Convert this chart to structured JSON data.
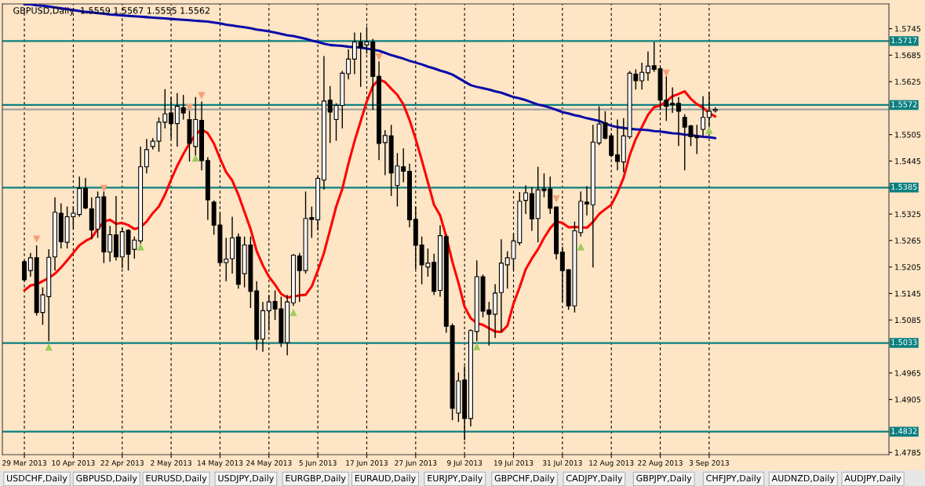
{
  "chart_data": {
    "type": "candlestick",
    "title": "GBPUSD,Daily  1.5559 1.5567 1.5555 1.5562",
    "categories": [
      "29 Mar 2013",
      null,
      null,
      null,
      null,
      null,
      null,
      null,
      "10 Apr 2013",
      null,
      null,
      null,
      null,
      null,
      null,
      null,
      "22 Apr 2013",
      null,
      null,
      null,
      null,
      null,
      null,
      null,
      "2 May 2013",
      null,
      null,
      null,
      null,
      null,
      null,
      null,
      "14 May 2013",
      null,
      null,
      null,
      null,
      null,
      null,
      null,
      "24 May 2013",
      null,
      null,
      null,
      null,
      null,
      null,
      null,
      "5 Jun 2013",
      null,
      null,
      null,
      null,
      null,
      null,
      null,
      "17 Jun 2013",
      null,
      null,
      null,
      null,
      null,
      null,
      null,
      "27 Jun 2013",
      null,
      null,
      null,
      null,
      null,
      null,
      null,
      "9 Jul 2013",
      null,
      null,
      null,
      null,
      null,
      null,
      null,
      "19 Jul 2013",
      null,
      null,
      null,
      null,
      null,
      null,
      null,
      "31 Jul 2013",
      null,
      null,
      null,
      null,
      null,
      null,
      null,
      "12 Aug 2013",
      null,
      null,
      null,
      null,
      null,
      null,
      null,
      "22 Aug 2013",
      null,
      null,
      null,
      null,
      null,
      null,
      null,
      "3 Sep 2013",
      null
    ],
    "ohlc": [
      [
        1.5217,
        1.522,
        1.5173,
        1.5176
      ],
      [
        1.5197,
        1.5237,
        1.5183,
        1.5226
      ],
      [
        1.5226,
        1.5254,
        1.5095,
        1.5102
      ],
      [
        1.5102,
        1.5159,
        1.5074,
        1.5142
      ],
      [
        1.5138,
        1.5245,
        1.5037,
        1.5227
      ],
      [
        1.5228,
        1.5363,
        1.5197,
        1.5329
      ],
      [
        1.5327,
        1.5349,
        1.5247,
        1.5262
      ],
      [
        1.5261,
        1.5342,
        1.5247,
        1.5319
      ],
      [
        1.5319,
        1.5342,
        1.5291,
        1.5327
      ],
      [
        1.5324,
        1.541,
        1.5319,
        1.5383
      ],
      [
        1.5383,
        1.5407,
        1.5336,
        1.5339
      ],
      [
        1.5337,
        1.5363,
        1.5268,
        1.5289
      ],
      [
        1.5291,
        1.5376,
        1.5271,
        1.5363
      ],
      [
        1.5364,
        1.5376,
        1.5214,
        1.5239
      ],
      [
        1.5239,
        1.5298,
        1.5217,
        1.5278
      ],
      [
        1.5278,
        1.5366,
        1.522,
        1.5228
      ],
      [
        1.5228,
        1.5295,
        1.5202,
        1.5285
      ],
      [
        1.5288,
        1.5291,
        1.5197,
        1.5234
      ],
      [
        1.5245,
        1.5274,
        1.5224,
        1.5266
      ],
      [
        1.5264,
        1.5478,
        1.5258,
        1.5432
      ],
      [
        1.5432,
        1.5495,
        1.5417,
        1.5471
      ],
      [
        1.5478,
        1.5497,
        1.5471,
        1.549
      ],
      [
        1.549,
        1.5544,
        1.5466,
        1.5533
      ],
      [
        1.5533,
        1.5608,
        1.5519,
        1.5552
      ],
      [
        1.5554,
        1.559,
        1.5495,
        1.553
      ],
      [
        1.553,
        1.5599,
        1.5478,
        1.5569
      ],
      [
        1.5566,
        1.5595,
        1.5539,
        1.5554
      ],
      [
        1.5539,
        1.5559,
        1.5444,
        1.5485
      ],
      [
        1.5478,
        1.559,
        1.5458,
        1.5539
      ],
      [
        1.5537,
        1.558,
        1.5424,
        1.5446
      ],
      [
        1.5446,
        1.5454,
        1.5312,
        1.5357
      ],
      [
        1.5352,
        1.5356,
        1.5278,
        1.53
      ],
      [
        1.53,
        1.5329,
        1.5207,
        1.5215
      ],
      [
        1.5215,
        1.5271,
        1.5173,
        1.5223
      ],
      [
        1.5224,
        1.5319,
        1.519,
        1.5271
      ],
      [
        1.5273,
        1.5281,
        1.5156,
        1.5166
      ],
      [
        1.519,
        1.5274,
        1.5159,
        1.5255
      ],
      [
        1.5255,
        1.5274,
        1.5112,
        1.515
      ],
      [
        1.5151,
        1.5173,
        1.5017,
        1.5041
      ],
      [
        1.5042,
        1.5126,
        1.5013,
        1.5106
      ],
      [
        1.5106,
        1.5142,
        1.5061,
        1.5126
      ],
      [
        1.5127,
        1.5152,
        1.5085,
        1.511
      ],
      [
        1.511,
        1.5138,
        1.5024,
        1.5034
      ],
      [
        1.5034,
        1.5142,
        1.5005,
        1.5126
      ],
      [
        1.5124,
        1.5234,
        1.5117,
        1.5232
      ],
      [
        1.523,
        1.5237,
        1.5126,
        1.5197
      ],
      [
        1.5197,
        1.5376,
        1.519,
        1.5315
      ],
      [
        1.5317,
        1.5342,
        1.5271,
        1.5313
      ],
      [
        1.5312,
        1.541,
        1.5288,
        1.5406
      ],
      [
        1.5402,
        1.5683,
        1.538,
        1.5581
      ],
      [
        1.5583,
        1.5615,
        1.5486,
        1.5556
      ],
      [
        1.5539,
        1.5576,
        1.5491,
        1.5571
      ],
      [
        1.5571,
        1.5649,
        1.5519,
        1.5644
      ],
      [
        1.5643,
        1.5698,
        1.563,
        1.5676
      ],
      [
        1.5676,
        1.5736,
        1.5642,
        1.5715
      ],
      [
        1.5715,
        1.5736,
        1.5613,
        1.5703
      ],
      [
        1.5708,
        1.5749,
        1.5688,
        1.5715
      ],
      [
        1.5715,
        1.5722,
        1.5561,
        1.5637
      ],
      [
        1.5637,
        1.5671,
        1.5447,
        1.5485
      ],
      [
        1.5487,
        1.5515,
        1.5413,
        1.5503
      ],
      [
        1.5502,
        1.5527,
        1.5366,
        1.5418
      ],
      [
        1.539,
        1.5463,
        1.5342,
        1.5434
      ],
      [
        1.5432,
        1.5474,
        1.5397,
        1.5422
      ],
      [
        1.5422,
        1.5439,
        1.5295,
        1.5312
      ],
      [
        1.5313,
        1.5342,
        1.52,
        1.5254
      ],
      [
        1.5255,
        1.5274,
        1.5166,
        1.521
      ],
      [
        1.5205,
        1.5247,
        1.5183,
        1.5214
      ],
      [
        1.5216,
        1.5235,
        1.5142,
        1.515
      ],
      [
        1.5152,
        1.53,
        1.5138,
        1.5276
      ],
      [
        1.5274,
        1.5278,
        1.5056,
        1.5071
      ],
      [
        1.5072,
        1.5077,
        1.4858,
        1.4885
      ],
      [
        1.4874,
        1.4966,
        1.4854,
        1.4947
      ],
      [
        1.4949,
        1.498,
        1.4813,
        1.4862
      ],
      [
        1.4862,
        1.5064,
        1.4844,
        1.5061
      ],
      [
        1.5059,
        1.522,
        1.5037,
        1.5183
      ],
      [
        1.5183,
        1.5188,
        1.5091,
        1.5105
      ],
      [
        1.5108,
        1.5126,
        1.5027,
        1.5098
      ],
      [
        1.5098,
        1.5166,
        1.5044,
        1.5146
      ],
      [
        1.5147,
        1.5268,
        1.5058,
        1.5214
      ],
      [
        1.521,
        1.5241,
        1.5156,
        1.5226
      ],
      [
        1.5224,
        1.5281,
        1.5197,
        1.5264
      ],
      [
        1.526,
        1.5375,
        1.5254,
        1.5354
      ],
      [
        1.5356,
        1.539,
        1.5325,
        1.5373
      ],
      [
        1.5371,
        1.5386,
        1.5287,
        1.5314
      ],
      [
        1.5315,
        1.5432,
        1.5261,
        1.538
      ],
      [
        1.5382,
        1.5417,
        1.5363,
        1.5378
      ],
      [
        1.5382,
        1.541,
        1.5325,
        1.5338
      ],
      [
        1.5341,
        1.5342,
        1.5222,
        1.5235
      ],
      [
        1.5239,
        1.5251,
        1.5126,
        1.5197
      ],
      [
        1.5199,
        1.52,
        1.5108,
        1.5117
      ],
      [
        1.5117,
        1.5308,
        1.5102,
        1.5287
      ],
      [
        1.5283,
        1.5376,
        1.5274,
        1.5354
      ],
      [
        1.5352,
        1.5388,
        1.5322,
        1.5348
      ],
      [
        1.5346,
        1.5527,
        1.5204,
        1.5488
      ],
      [
        1.5486,
        1.5569,
        1.5481,
        1.5529
      ],
      [
        1.5532,
        1.5558,
        1.5494,
        1.5497
      ],
      [
        1.5502,
        1.5508,
        1.5454,
        1.5458
      ],
      [
        1.5459,
        1.5539,
        1.5424,
        1.5444
      ],
      [
        1.5443,
        1.5542,
        1.542,
        1.5502
      ],
      [
        1.55,
        1.5649,
        1.5495,
        1.5644
      ],
      [
        1.5642,
        1.5653,
        1.5607,
        1.5627
      ],
      [
        1.5627,
        1.5668,
        1.5607,
        1.5646
      ],
      [
        1.5645,
        1.5693,
        1.5627,
        1.566
      ],
      [
        1.5661,
        1.5715,
        1.5647,
        1.5653
      ],
      [
        1.5654,
        1.5658,
        1.5561,
        1.5583
      ],
      [
        1.5583,
        1.5637,
        1.5536,
        1.5569
      ],
      [
        1.5576,
        1.5612,
        1.5554,
        1.5573
      ],
      [
        1.5576,
        1.559,
        1.5479,
        1.5558
      ],
      [
        1.5544,
        1.5551,
        1.5424,
        1.5522
      ],
      [
        1.5525,
        1.5527,
        1.5479,
        1.55
      ],
      [
        1.5502,
        1.5527,
        1.5461,
        1.5498
      ],
      [
        1.5517,
        1.5592,
        1.5502,
        1.5544
      ],
      [
        1.5544,
        1.5601,
        1.5522,
        1.5558
      ],
      [
        1.5559,
        1.5567,
        1.5555,
        1.5562
      ]
    ],
    "series": [
      {
        "type": "line",
        "color": "#ff0000",
        "values": [
          1.5152,
          1.5163,
          1.5166,
          1.5173,
          1.518,
          1.519,
          1.5204,
          1.522,
          1.5237,
          1.5254,
          1.5264,
          1.5271,
          1.5291,
          1.5308,
          1.5312,
          1.5303,
          1.5305,
          1.53,
          1.5291,
          1.5295,
          1.5308,
          1.5327,
          1.5342,
          1.5369,
          1.5403,
          1.5434,
          1.5461,
          1.5485,
          1.5505,
          1.5517,
          1.5508,
          1.5485,
          1.5451,
          1.542,
          1.5401,
          1.5369,
          1.533,
          1.5291,
          1.5241,
          1.5209,
          1.5183,
          1.5165,
          1.5144,
          1.5136,
          1.5138,
          1.5141,
          1.5142,
          1.5161,
          1.5197,
          1.5237,
          1.5289,
          1.5342,
          1.5382,
          1.5439,
          1.549,
          1.5535,
          1.558,
          1.5615,
          1.563,
          1.5624,
          1.5609,
          1.5595,
          1.5573,
          1.5538,
          1.5495,
          1.5447,
          1.5397,
          1.5346,
          1.5322,
          1.5274,
          1.5217,
          1.5169,
          1.5115,
          1.5089,
          1.5078,
          1.5074,
          1.5066,
          1.5059,
          1.5058,
          1.5072,
          1.5122,
          1.5159,
          1.52,
          1.5224,
          1.5245,
          1.5271,
          1.5293,
          1.5308,
          1.5305,
          1.5295,
          1.5296,
          1.5295,
          1.5294,
          1.5307,
          1.5325,
          1.5336,
          1.5346,
          1.5373,
          1.5407,
          1.5458,
          1.5495,
          1.5522,
          1.555,
          1.5567,
          1.5571,
          1.558,
          1.5592,
          1.5597,
          1.5603,
          1.5586,
          1.5574,
          1.5566,
          1.5554,
          1.5546
        ]
      },
      {
        "type": "line",
        "color": "#0a0aa8",
        "values": [
          1.58,
          1.58,
          1.5798,
          1.5797,
          1.5795,
          1.5793,
          1.5791,
          1.5789,
          1.5787,
          1.5785,
          1.5783,
          1.5782,
          1.578,
          1.5779,
          1.5777,
          1.5776,
          1.5775,
          1.5774,
          1.5773,
          1.5772,
          1.5771,
          1.577,
          1.5769,
          1.5768,
          1.5767,
          1.5766,
          1.5765,
          1.5764,
          1.5763,
          1.5762,
          1.5761,
          1.5759,
          1.5757,
          1.5754,
          1.5752,
          1.575,
          1.5748,
          1.5746,
          1.5743,
          1.5741,
          1.5739,
          1.5736,
          1.5733,
          1.573,
          1.5728,
          1.5725,
          1.5722,
          1.5718,
          1.5715,
          1.5711,
          1.5708,
          1.5707,
          1.5706,
          1.5704,
          1.5703,
          1.5702,
          1.57,
          1.5697,
          1.5695,
          1.569,
          1.5685,
          1.5681,
          1.5677,
          1.5672,
          1.5668,
          1.5664,
          1.5659,
          1.5655,
          1.565,
          1.5646,
          1.5641,
          1.5633,
          1.5625,
          1.5617,
          1.5613,
          1.561,
          1.5607,
          1.5603,
          1.56,
          1.5595,
          1.559,
          1.5587,
          1.5583,
          1.5578,
          1.5573,
          1.557,
          1.5566,
          1.5561,
          1.5556,
          1.5553,
          1.5549,
          1.5546,
          1.5542,
          1.5539,
          1.5536,
          1.553,
          1.5525,
          1.5522,
          1.552,
          1.5518,
          1.5517,
          1.5516,
          1.5515,
          1.5513,
          1.5512,
          1.551,
          1.5508,
          1.5507,
          1.5505,
          1.5504,
          1.5502,
          1.55,
          1.5499,
          1.5497
        ]
      },
      {
        "type": "scatter",
        "color": "#f4a07a",
        "marker": "triangle",
        "values": [
          null,
          null,
          1.5268,
          null,
          null,
          null,
          null,
          null,
          null,
          null,
          null,
          null,
          null,
          1.5383,
          null,
          null,
          null,
          null,
          null,
          null,
          null,
          null,
          null,
          null,
          null,
          null,
          null,
          1.5566,
          null,
          1.5593,
          null,
          null,
          null,
          null,
          null,
          null,
          null,
          null,
          null,
          null,
          null,
          null,
          null,
          null,
          null,
          null,
          null,
          null,
          null,
          null,
          null,
          null,
          null,
          null,
          null,
          null,
          null,
          null,
          1.5681,
          null,
          null,
          null,
          null,
          null,
          null,
          null,
          null,
          null,
          null,
          null,
          null,
          null,
          null,
          null,
          null,
          null,
          null,
          null,
          null,
          null,
          null,
          null,
          null,
          null,
          null,
          null,
          null,
          1.5359,
          null,
          null,
          null,
          null,
          null,
          null,
          null,
          null,
          null,
          null,
          null,
          null,
          null,
          null,
          null,
          null,
          null,
          1.5644,
          null,
          null,
          null,
          null,
          null,
          null,
          null,
          null
        ]
      },
      {
        "type": "scatter",
        "color": "#9acd5a",
        "marker": "triangle",
        "values": [
          null,
          null,
          null,
          null,
          1.5024,
          null,
          null,
          null,
          null,
          null,
          null,
          null,
          null,
          null,
          null,
          null,
          null,
          null,
          null,
          1.5251,
          null,
          null,
          null,
          null,
          null,
          null,
          null,
          null,
          1.5452,
          null,
          null,
          null,
          null,
          null,
          null,
          null,
          null,
          null,
          null,
          null,
          null,
          null,
          null,
          null,
          1.5102,
          null,
          null,
          null,
          null,
          null,
          null,
          null,
          null,
          null,
          null,
          null,
          null,
          null,
          null,
          null,
          null,
          null,
          null,
          null,
          null,
          null,
          null,
          null,
          null,
          null,
          null,
          null,
          null,
          null,
          1.5025,
          null,
          null,
          null,
          null,
          null,
          null,
          null,
          null,
          null,
          null,
          null,
          null,
          null,
          null,
          null,
          null,
          1.5251,
          null,
          null,
          null,
          null,
          null,
          null,
          null,
          null,
          null,
          null,
          null,
          null,
          null,
          null,
          null,
          null,
          null,
          null,
          null,
          null,
          1.5515,
          null
        ]
      }
    ],
    "ylim": [
      1.478,
      1.5801
    ],
    "yticks": [
      1.5745,
      1.5685,
      1.5625,
      {
        "value": 1.5565,
        "label": null
      },
      1.5505,
      1.5445,
      {
        "value": 1.5385,
        "label": null
      },
      1.5325,
      1.5265,
      1.5205,
      1.5145,
      1.5085,
      1.4965,
      1.4905,
      1.4785
    ],
    "ref_lines": [
      {
        "axis": "y",
        "value": 1.5717,
        "label": "1.5717",
        "color": "#0b7f7f"
      },
      {
        "axis": "y",
        "value": 1.5572,
        "label": "1.5572",
        "color": "#0b7f7f"
      },
      {
        "axis": "y",
        "value": 1.5562,
        "color": "#a0a0a0"
      },
      {
        "axis": "y",
        "value": 1.5385,
        "label": "1.5385",
        "color": "#0b7f7f"
      },
      {
        "axis": "y",
        "value": 1.5033,
        "label": "1.5033",
        "color": "#0b7f7f"
      },
      {
        "axis": "y",
        "value": 1.4832,
        "label": "1.4832",
        "color": "#0b7f7f"
      }
    ],
    "grid": "x",
    "legend": false,
    "annotations": [
      "USDCHF,Daily",
      "GBPUSD,Daily",
      "EURUSD,Daily",
      "USDJPY,Daily",
      "EURGBP,Daily",
      "EURAUD,Daily",
      "EURJPY,Daily",
      "GBPCHF,Daily",
      "CADJPY,Daily",
      "GBPJPY,Daily",
      "CHFJPY,Daily",
      "AUDNZD,Daily",
      "AUDJPY,Daily"
    ]
  }
}
